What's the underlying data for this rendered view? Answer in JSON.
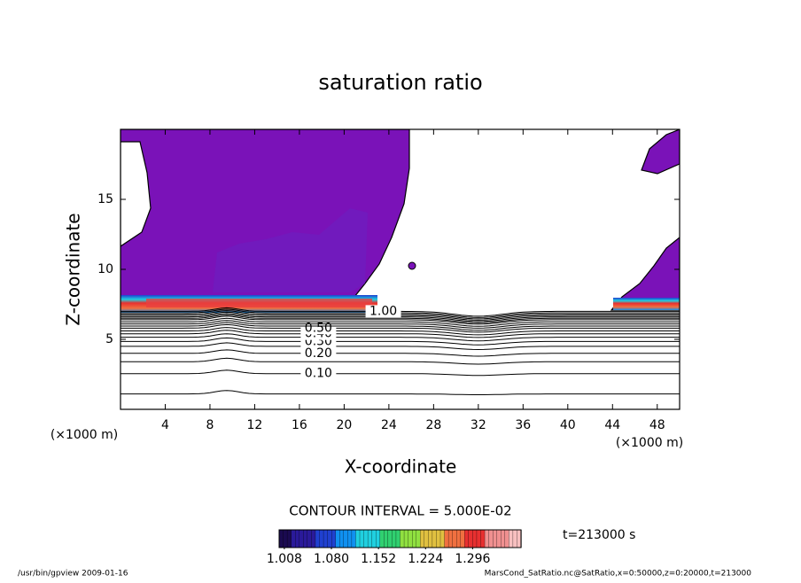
{
  "chart_data": {
    "type": "contour",
    "title": "saturation ratio",
    "x_label": "X-coordinate",
    "y_label": "Z-coordinate",
    "x_unit": "(×1000 m)",
    "xlim": [
      0,
      50
    ],
    "xticks": [
      4,
      8,
      12,
      16,
      20,
      24,
      28,
      32,
      36,
      40,
      44,
      48
    ],
    "ylim": [
      0,
      20
    ],
    "yticks": [
      5,
      10,
      15
    ],
    "contours": [
      {
        "z": 1.1
      },
      {
        "z": 2.55,
        "label": "0.10"
      },
      {
        "z": 3.4
      },
      {
        "z": 4.0,
        "label": "0.20"
      },
      {
        "z": 4.5
      },
      {
        "z": 4.85,
        "label": "0.30"
      },
      {
        "z": 5.15
      },
      {
        "z": 5.4,
        "label": "0.40"
      },
      {
        "z": 5.6
      },
      {
        "z": 5.8,
        "label": "0.50"
      },
      {
        "z": 5.95
      },
      {
        "z": 6.1
      },
      {
        "z": 6.25
      },
      {
        "z": 6.4
      },
      {
        "z": 6.5
      },
      {
        "z": 6.6
      },
      {
        "z": 6.7
      },
      {
        "z": 6.8
      },
      {
        "z": 6.9
      },
      {
        "z": 7.0,
        "label": "1.00"
      }
    ],
    "contour_interval_label": "CONTOUR INTERVAL = 5.000E-02",
    "colorbar": {
      "clim": [
        1.0,
        1.37
      ],
      "ticks": [
        1.008,
        {
          "value": 1.08,
          "label": "1.080"
        },
        1.152,
        1.224,
        1.296
      ],
      "colors": [
        "#1a0a50",
        "#2a1a9a",
        "#2040d0",
        "#1090f0",
        "#20d0e0",
        "#30d070",
        "#90e040",
        "#e0c040",
        "#f07040",
        "#e83030",
        "#f09090",
        "#f8c0c0"
      ]
    },
    "time_label": "t=213000 s",
    "footer_left": "/usr/bin/gpview  2009-01-16",
    "footer_right": "MarsCond_SatRatio.nc@SatRatio,x=0:50000,z=0:20000,t=213000"
  }
}
